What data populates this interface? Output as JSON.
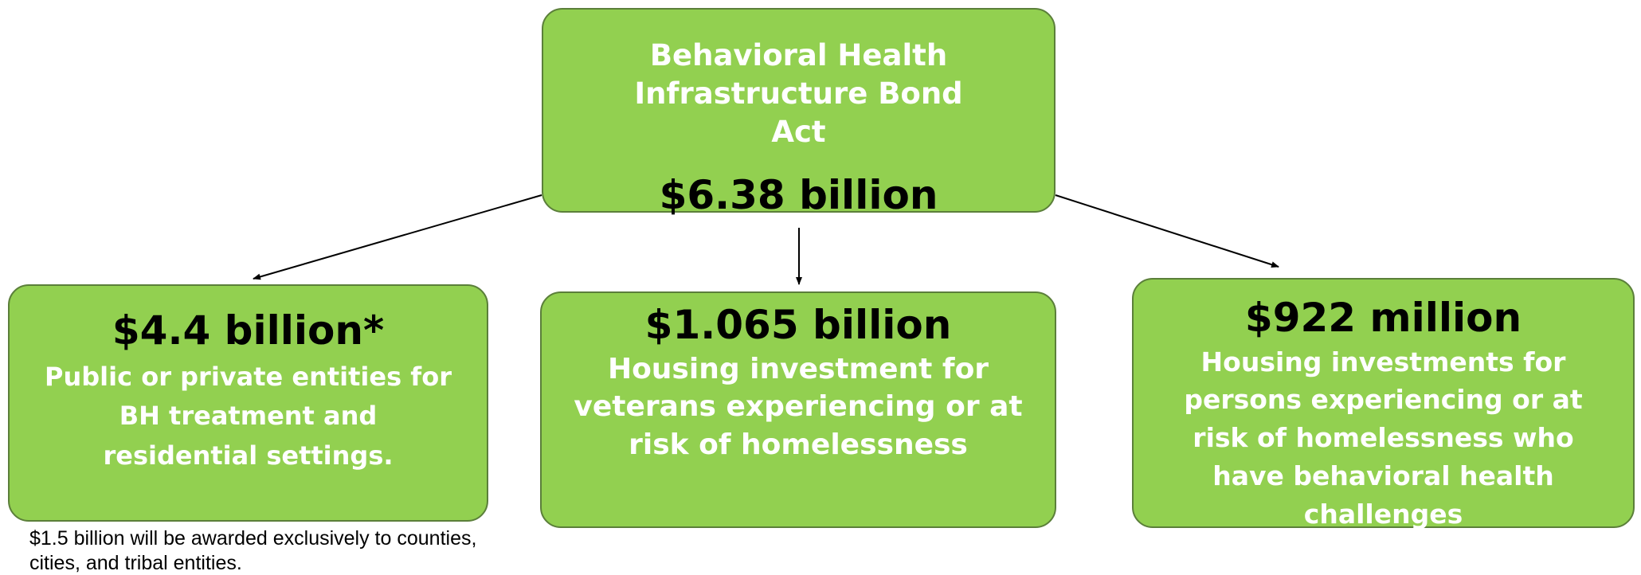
{
  "root": {
    "title": "Behavioral Health Infrastructure Bond Act",
    "amount": "$6.38 billion"
  },
  "branches": [
    {
      "amount": "$4.4 billion*",
      "description": "Public or private entities for BH treatment and residential settings."
    },
    {
      "amount": "$1.065 billion",
      "description": "Housing investment for veterans experiencing or at risk of homelessness"
    },
    {
      "amount": "$922 million",
      "description": "Housing investments for persons experiencing or at risk of homelessness who have behavioral health challenges"
    }
  ],
  "footnote": "$1.5 billion will be awarded exclusively to counties, cities, and tribal entities.",
  "colors": {
    "box_fill": "#92d050",
    "box_border": "#5b7f3a",
    "amount_text": "#000000",
    "label_text": "#ffffff"
  }
}
